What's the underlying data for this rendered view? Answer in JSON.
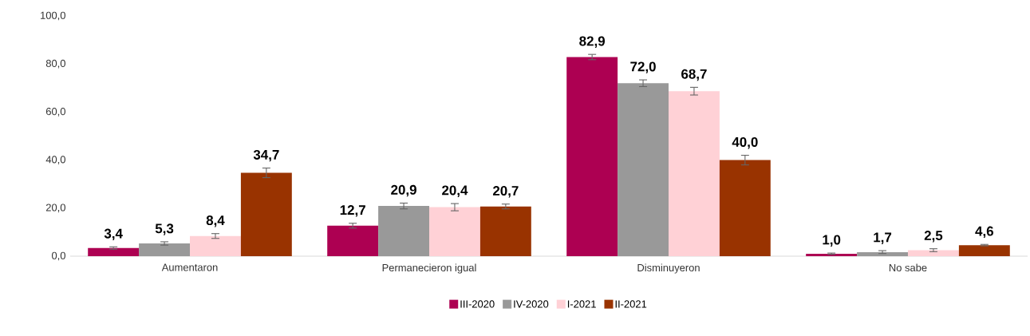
{
  "chart_data": {
    "type": "bar",
    "categories": [
      "Aumentaron",
      "Permanecieron igual",
      "Disminuyeron",
      "No sabe"
    ],
    "series": [
      {
        "name": "III-2020",
        "color": "#ad0052",
        "values": [
          3.4,
          12.7,
          82.9,
          1.0
        ],
        "errors": [
          0.5,
          1.0,
          1.1,
          0.3
        ],
        "value_labels": [
          "3,4",
          "12,7",
          "82,9",
          "1,0"
        ]
      },
      {
        "name": "IV-2020",
        "color": "#999999",
        "values": [
          5.3,
          20.9,
          72.0,
          1.7
        ],
        "errors": [
          0.7,
          1.2,
          1.4,
          0.6
        ],
        "value_labels": [
          "5,3",
          "20,9",
          "72,0",
          "1,7"
        ]
      },
      {
        "name": "I-2021",
        "color": "#ffd1d6",
        "values": [
          8.4,
          20.4,
          68.7,
          2.5
        ],
        "errors": [
          1.0,
          1.5,
          1.6,
          0.6
        ],
        "value_labels": [
          "8,4",
          "20,4",
          "68,7",
          "2,5"
        ]
      },
      {
        "name": "II-2021",
        "color": "#993300",
        "values": [
          34.7,
          20.7,
          40.0,
          4.6
        ],
        "errors": [
          2.0,
          1.0,
          2.0,
          0.3
        ],
        "value_labels": [
          "34,7",
          "20,7",
          "40,0",
          "4,6"
        ]
      }
    ],
    "ylim": [
      0,
      100
    ],
    "yticks": [
      {
        "value": 0,
        "label": "0,0"
      },
      {
        "value": 20,
        "label": "20,0"
      },
      {
        "value": 40,
        "label": "40,0"
      },
      {
        "value": 60,
        "label": "60,0"
      },
      {
        "value": 80,
        "label": "80,0"
      },
      {
        "value": 100,
        "label": "100,0"
      }
    ],
    "legend": "bottom"
  }
}
